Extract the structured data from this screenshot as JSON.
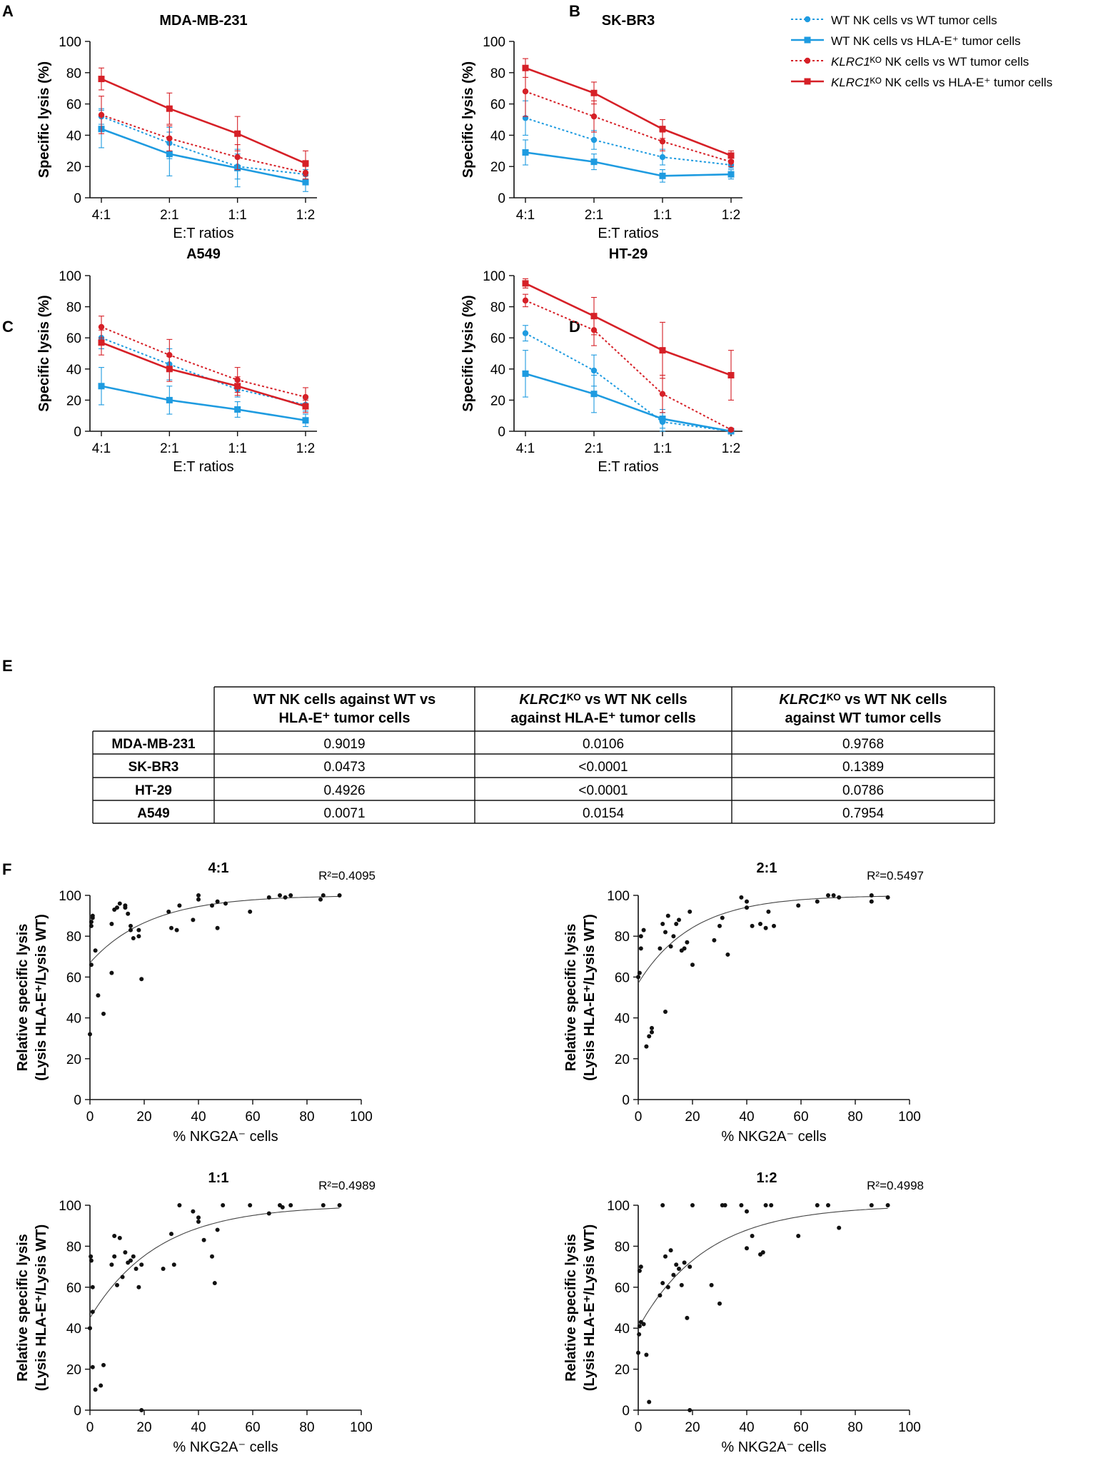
{
  "colors": {
    "blue": "#1e9be0",
    "red": "#d62027",
    "black": "#111111"
  },
  "legend": {
    "items": [
      {
        "text": "WT NK cells vs WT tumor cells",
        "color": "#1e9be0",
        "dash": true,
        "marker": "circle"
      },
      {
        "text": "WT NK cells vs HLA-E⁺ tumor cells",
        "color": "#1e9be0",
        "dash": false,
        "marker": "square"
      },
      {
        "text": "KLRC1ᴷᴼ NK cells vs WT tumor cells",
        "color": "#d62027",
        "dash": true,
        "marker": "circle"
      },
      {
        "text": "KLRC1ᴷᴼ NK cells vs HLA-E⁺ tumor cells",
        "color": "#d62027",
        "dash": false,
        "marker": "square"
      }
    ]
  },
  "chart_data": [
    {
      "panel": "A",
      "type": "line",
      "title": "MDA-MB-231",
      "xlabel": "E:T ratios",
      "ylabel": "Specific lysis (%)",
      "categories": [
        "4:1",
        "2:1",
        "1:1",
        "1:2"
      ],
      "ylim": [
        0,
        100
      ],
      "yticks": [
        0,
        20,
        40,
        60,
        80,
        100
      ],
      "series": [
        {
          "name": "WT NK cells vs WT tumor cells",
          "values": [
            52,
            35,
            20,
            15
          ],
          "errors": [
            5,
            10,
            8,
            3
          ]
        },
        {
          "name": "WT NK cells vs HLA-E⁺ tumor cells",
          "values": [
            44,
            28,
            19,
            10
          ],
          "errors": [
            12,
            14,
            12,
            6
          ]
        },
        {
          "name": "KLRC1ᴷᴼ NK cells vs WT tumor cells",
          "values": [
            53,
            38,
            26,
            16
          ],
          "errors": [
            12,
            8,
            8,
            4
          ]
        },
        {
          "name": "KLRC1ᴷᴼ NK cells vs HLA-E⁺ tumor cells",
          "values": [
            76,
            57,
            41,
            22
          ],
          "errors": [
            7,
            10,
            11,
            8
          ]
        }
      ]
    },
    {
      "panel": "B",
      "type": "line",
      "title": "SK-BR3",
      "xlabel": "E:T ratios",
      "ylabel": "Specific lysis (%)",
      "categories": [
        "4:1",
        "2:1",
        "1:1",
        "1:2"
      ],
      "ylim": [
        0,
        100
      ],
      "yticks": [
        0,
        20,
        40,
        60,
        80,
        100
      ],
      "series": [
        {
          "name": "WT NK cells vs WT tumor cells",
          "values": [
            51,
            37,
            26,
            21
          ],
          "errors": [
            11,
            6,
            5,
            2
          ]
        },
        {
          "name": "WT NK cells vs HLA-E⁺ tumor cells",
          "values": [
            29,
            23,
            14,
            15
          ],
          "errors": [
            8,
            5,
            4,
            3
          ]
        },
        {
          "name": "KLRC1ᴷᴼ NK cells vs WT tumor cells",
          "values": [
            68,
            52,
            36,
            23
          ],
          "errors": [
            16,
            10,
            6,
            3
          ]
        },
        {
          "name": "KLRC1ᴷᴼ NK cells vs HLA-E⁺ tumor cells",
          "values": [
            83,
            67,
            44,
            27
          ],
          "errors": [
            6,
            7,
            6,
            3
          ]
        }
      ]
    },
    {
      "panel": "C",
      "type": "line",
      "title": "A549",
      "xlabel": "E:T ratios",
      "ylabel": "Specific lysis (%)",
      "categories": [
        "4:1",
        "2:1",
        "1:1",
        "1:2"
      ],
      "ylim": [
        0,
        100
      ],
      "yticks": [
        0,
        20,
        40,
        60,
        80,
        100
      ],
      "series": [
        {
          "name": "WT NK cells vs WT tumor cells",
          "values": [
            60,
            43,
            27,
            17
          ],
          "errors": [
            7,
            10,
            5,
            4
          ]
        },
        {
          "name": "WT NK cells vs HLA-E⁺ tumor cells",
          "values": [
            29,
            20,
            14,
            7
          ],
          "errors": [
            12,
            9,
            5,
            4
          ]
        },
        {
          "name": "KLRC1ᴷᴼ NK cells vs WT tumor cells",
          "values": [
            67,
            49,
            33,
            22
          ],
          "errors": [
            7,
            10,
            8,
            6
          ]
        },
        {
          "name": "KLRC1ᴷᴼ NK cells vs HLA-E⁺ tumor cells",
          "values": [
            57,
            40,
            29,
            16
          ],
          "errors": [
            8,
            8,
            6,
            4
          ]
        }
      ]
    },
    {
      "panel": "D",
      "type": "line",
      "title": "HT-29",
      "xlabel": "E:T ratios",
      "ylabel": "Specific lysis (%)",
      "categories": [
        "4:1",
        "2:1",
        "1:1",
        "1:2"
      ],
      "ylim": [
        0,
        100
      ],
      "yticks": [
        0,
        20,
        40,
        60,
        80,
        100
      ],
      "series": [
        {
          "name": "WT NK cells vs WT tumor cells",
          "values": [
            63,
            39,
            6,
            0
          ],
          "errors": [
            5,
            10,
            6,
            1
          ]
        },
        {
          "name": "WT NK cells vs HLA-E⁺ tumor cells",
          "values": [
            37,
            24,
            8,
            0
          ],
          "errors": [
            15,
            12,
            6,
            1
          ]
        },
        {
          "name": "KLRC1ᴷᴼ NK cells vs WT tumor cells",
          "values": [
            84,
            65,
            24,
            1
          ],
          "errors": [
            4,
            10,
            12,
            1
          ]
        },
        {
          "name": "KLRC1ᴷᴼ NK cells vs HLA-E⁺ tumor cells",
          "values": [
            95,
            74,
            52,
            36
          ],
          "errors": [
            3,
            12,
            18,
            16
          ]
        }
      ]
    },
    {
      "panel": "E",
      "type": "table",
      "columns": [
        [
          {
            "t": "WT NK cells against WT vs"
          },
          {
            "t": "HLA-E⁺ tumor cells"
          }
        ],
        [
          {
            "t": "KLRC1",
            "i": true
          },
          {
            "t": "ᴷᴼ vs WT NK cells"
          },
          {
            "t": "against HLA-E⁺ tumor cells"
          }
        ],
        [
          {
            "t": "KLRC1",
            "i": true
          },
          {
            "t": "ᴷᴼ vs WT NK cells"
          },
          {
            "t": "against WT tumor cells"
          }
        ]
      ],
      "rows": [
        {
          "name": "MDA-MB-231",
          "cells": [
            "0.9019",
            "0.0106",
            "0.9768"
          ]
        },
        {
          "name": "SK-BR3",
          "cells": [
            "0.0473",
            "<0.0001",
            "0.1389"
          ]
        },
        {
          "name": "HT-29",
          "cells": [
            "0.4926",
            "<0.0001",
            "0.0786"
          ]
        },
        {
          "name": "A549",
          "cells": [
            "0.0071",
            "0.0154",
            "0.7954"
          ]
        }
      ]
    },
    {
      "panel": "F",
      "type": "scatter",
      "title": "4:1",
      "r2": "R²=0.4095",
      "xlabel": "% NKG2A⁻ cells",
      "ylabel": [
        "Relative specific lysis",
        "(Lysis HLA-E⁺/Lysis WT)"
      ],
      "xlim": [
        0,
        100
      ],
      "ylim": [
        0,
        100
      ],
      "xticks": [
        0,
        20,
        40,
        60,
        80,
        100
      ],
      "yticks": [
        0,
        20,
        40,
        60,
        80,
        100
      ],
      "fit": {
        "plateau": 100,
        "y0": 67,
        "k": 0.045
      },
      "points": [
        [
          0,
          32
        ],
        [
          0.5,
          66
        ],
        [
          0.5,
          85
        ],
        [
          0.5,
          87
        ],
        [
          1,
          89
        ],
        [
          1,
          90
        ],
        [
          2,
          73
        ],
        [
          3,
          51
        ],
        [
          5,
          42
        ],
        [
          8,
          86
        ],
        [
          9,
          93
        ],
        [
          10,
          94
        ],
        [
          11,
          96
        ],
        [
          13,
          95
        ],
        [
          14,
          91
        ],
        [
          15,
          83
        ],
        [
          15,
          85
        ],
        [
          16,
          79
        ],
        [
          18,
          80
        ],
        [
          18,
          83
        ],
        [
          19,
          59
        ],
        [
          8,
          62
        ],
        [
          29,
          92
        ],
        [
          30,
          84
        ],
        [
          32,
          83
        ],
        [
          33,
          95
        ],
        [
          38,
          88
        ],
        [
          40,
          98
        ],
        [
          40,
          100
        ],
        [
          45,
          95
        ],
        [
          47,
          84
        ],
        [
          47,
          97
        ],
        [
          50,
          96
        ],
        [
          59,
          92
        ],
        [
          66,
          99
        ],
        [
          70,
          100
        ],
        [
          72,
          99
        ],
        [
          74,
          100
        ],
        [
          86,
          100
        ],
        [
          92,
          100
        ],
        [
          85,
          98
        ],
        [
          13,
          94
        ]
      ]
    },
    {
      "panel": "F",
      "type": "scatter",
      "title": "2:1",
      "r2": "R²=0.5497",
      "xlabel": "% NKG2A⁻ cells",
      "ylabel": [
        "Relative specific lysis",
        "(Lysis HLA-E⁺/Lysis WT)"
      ],
      "xlim": [
        0,
        100
      ],
      "ylim": [
        0,
        100
      ],
      "xticks": [
        0,
        20,
        40,
        60,
        80,
        100
      ],
      "yticks": [
        0,
        20,
        40,
        60,
        80,
        100
      ],
      "fit": {
        "plateau": 100,
        "y0": 57,
        "k": 0.05
      },
      "points": [
        [
          0,
          60
        ],
        [
          0.5,
          62
        ],
        [
          1,
          74
        ],
        [
          1,
          80
        ],
        [
          2,
          83
        ],
        [
          3,
          26
        ],
        [
          4,
          31
        ],
        [
          5,
          33
        ],
        [
          5,
          35
        ],
        [
          8,
          74
        ],
        [
          9,
          86
        ],
        [
          10,
          43
        ],
        [
          10,
          82
        ],
        [
          11,
          90
        ],
        [
          12,
          75
        ],
        [
          13,
          80
        ],
        [
          14,
          86
        ],
        [
          15,
          88
        ],
        [
          16,
          73
        ],
        [
          17,
          74
        ],
        [
          18,
          77
        ],
        [
          19,
          92
        ],
        [
          20,
          66
        ],
        [
          28,
          78
        ],
        [
          30,
          85
        ],
        [
          31,
          89
        ],
        [
          33,
          71
        ],
        [
          38,
          99
        ],
        [
          40,
          94
        ],
        [
          40,
          97
        ],
        [
          42,
          85
        ],
        [
          45,
          86
        ],
        [
          47,
          84
        ],
        [
          48,
          92
        ],
        [
          50,
          85
        ],
        [
          59,
          95
        ],
        [
          66,
          97
        ],
        [
          70,
          100
        ],
        [
          72,
          100
        ],
        [
          74,
          99
        ],
        [
          86,
          100
        ],
        [
          86,
          97
        ],
        [
          92,
          99
        ]
      ]
    },
    {
      "panel": "F",
      "type": "scatter",
      "title": "1:1",
      "r2": "R²=0.4989",
      "xlabel": "% NKG2A⁻ cells",
      "ylabel": [
        "Relative specific lysis",
        "(Lysis HLA-E⁺/Lysis WT)"
      ],
      "xlim": [
        0,
        100
      ],
      "ylim": [
        0,
        100
      ],
      "xticks": [
        0,
        20,
        40,
        60,
        80,
        100
      ],
      "yticks": [
        0,
        20,
        40,
        60,
        80,
        100
      ],
      "fit": {
        "plateau": 100,
        "y0": 45,
        "k": 0.04
      },
      "points": [
        [
          0,
          40
        ],
        [
          0.3,
          75
        ],
        [
          0.5,
          73
        ],
        [
          1,
          21
        ],
        [
          1,
          48
        ],
        [
          1,
          60
        ],
        [
          2,
          10
        ],
        [
          4,
          12
        ],
        [
          5,
          22
        ],
        [
          8,
          71
        ],
        [
          9,
          85
        ],
        [
          9,
          75
        ],
        [
          10,
          61
        ],
        [
          11,
          84
        ],
        [
          12,
          65
        ],
        [
          13,
          77
        ],
        [
          14,
          72
        ],
        [
          15,
          73
        ],
        [
          16,
          75
        ],
        [
          17,
          69
        ],
        [
          18,
          60
        ],
        [
          19,
          71
        ],
        [
          19,
          0
        ],
        [
          27,
          69
        ],
        [
          30,
          86
        ],
        [
          31,
          71
        ],
        [
          33,
          100
        ],
        [
          38,
          97
        ],
        [
          40,
          94
        ],
        [
          40,
          92
        ],
        [
          42,
          83
        ],
        [
          45,
          75
        ],
        [
          46,
          62
        ],
        [
          47,
          88
        ],
        [
          49,
          100
        ],
        [
          59,
          100
        ],
        [
          66,
          96
        ],
        [
          70,
          100
        ],
        [
          71,
          99
        ],
        [
          74,
          100
        ],
        [
          86,
          100
        ],
        [
          92,
          100
        ]
      ]
    },
    {
      "panel": "F",
      "type": "scatter",
      "title": "1:2",
      "r2": "R²=0.4998",
      "xlabel": "% NKG2A⁻ cells",
      "ylabel": [
        "Relative specific lysis",
        "(Lysis HLA-E⁺/Lysis WT)"
      ],
      "xlim": [
        0,
        100
      ],
      "ylim": [
        0,
        100
      ],
      "xticks": [
        0,
        20,
        40,
        60,
        80,
        100
      ],
      "yticks": [
        0,
        20,
        40,
        60,
        80,
        100
      ],
      "fit": {
        "plateau": 100,
        "y0": 40,
        "k": 0.04
      },
      "points": [
        [
          0,
          28
        ],
        [
          0.3,
          37
        ],
        [
          0.5,
          41
        ],
        [
          0.5,
          68
        ],
        [
          1,
          70
        ],
        [
          1,
          43
        ],
        [
          2,
          42
        ],
        [
          3,
          27
        ],
        [
          4,
          4
        ],
        [
          8,
          56
        ],
        [
          9,
          62
        ],
        [
          9,
          100
        ],
        [
          10,
          75
        ],
        [
          11,
          60
        ],
        [
          12,
          78
        ],
        [
          13,
          66
        ],
        [
          14,
          71
        ],
        [
          15,
          69
        ],
        [
          16,
          61
        ],
        [
          17,
          72
        ],
        [
          18,
          45
        ],
        [
          19,
          70
        ],
        [
          19,
          0
        ],
        [
          20,
          100
        ],
        [
          27,
          61
        ],
        [
          30,
          52
        ],
        [
          31,
          100
        ],
        [
          32,
          100
        ],
        [
          38,
          100
        ],
        [
          40,
          97
        ],
        [
          40,
          79
        ],
        [
          42,
          85
        ],
        [
          45,
          76
        ],
        [
          46,
          77
        ],
        [
          47,
          100
        ],
        [
          49,
          100
        ],
        [
          59,
          85
        ],
        [
          66,
          100
        ],
        [
          70,
          100
        ],
        [
          74,
          89
        ],
        [
          86,
          100
        ],
        [
          92,
          100
        ]
      ]
    }
  ]
}
